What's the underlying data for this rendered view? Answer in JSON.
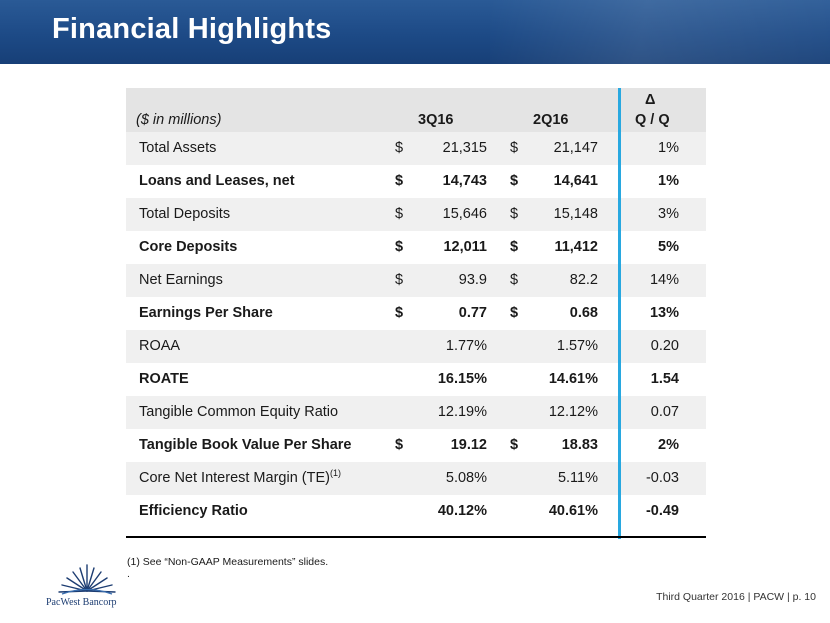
{
  "header": {
    "title": "Financial Highlights"
  },
  "table": {
    "label": "($ in millions)",
    "col1": "3Q16",
    "col2": "2Q16",
    "delta_symbol": "Δ",
    "delta_label": "Q / Q",
    "rows": [
      {
        "name": "Total Assets",
        "d1": "$",
        "v1": "21,315",
        "d2": "$",
        "v2": "21,147",
        "chg": "1%"
      },
      {
        "name": "Loans and Leases, net",
        "d1": "$",
        "v1": "14,743",
        "d2": "$",
        "v2": "14,641",
        "chg": "1%"
      },
      {
        "name": "Total Deposits",
        "d1": "$",
        "v1": "15,646",
        "d2": "$",
        "v2": "15,148",
        "chg": "3%"
      },
      {
        "name": "Core Deposits",
        "d1": "$",
        "v1": "12,011",
        "d2": "$",
        "v2": "11,412",
        "chg": "5%"
      },
      {
        "name": "Net Earnings",
        "d1": "$",
        "v1": "93.9",
        "d2": "$",
        "v2": "82.2",
        "chg": "14%"
      },
      {
        "name": "Earnings Per Share",
        "d1": "$",
        "v1": "0.77",
        "d2": "$",
        "v2": "0.68",
        "chg": "13%"
      },
      {
        "name": "ROAA",
        "d1": "",
        "v1": "1.77%",
        "d2": "",
        "v2": "1.57%",
        "chg": "0.20"
      },
      {
        "name": "ROATE",
        "d1": "",
        "v1": "16.15%",
        "d2": "",
        "v2": "14.61%",
        "chg": "1.54"
      },
      {
        "name": "Tangible Common Equity Ratio",
        "d1": "",
        "v1": "12.19%",
        "d2": "",
        "v2": "12.12%",
        "chg": "0.07"
      },
      {
        "name": "Tangible Book Value Per Share",
        "d1": "$",
        "v1": "19.12",
        "d2": "$",
        "v2": "18.83",
        "chg": "2%"
      },
      {
        "name": "Core Net Interest Margin (TE)",
        "sup": "(1)",
        "d1": "",
        "v1": "5.08%",
        "d2": "",
        "v2": "5.11%",
        "chg": "-0.03"
      },
      {
        "name": "Efficiency Ratio",
        "d1": "",
        "v1": "40.12%",
        "d2": "",
        "v2": "40.61%",
        "chg": "-0.49"
      }
    ]
  },
  "footnotes": {
    "note1": "(1)   See “Non-GAAP Measurements” slides.",
    "note2": "."
  },
  "footer": {
    "company": "PacWest Bancorp",
    "page_info": "Third Quarter 2016 | PACW | p. 10"
  },
  "colors": {
    "header_blue": "#1d4a86",
    "divider_blue": "#28a8e0"
  }
}
